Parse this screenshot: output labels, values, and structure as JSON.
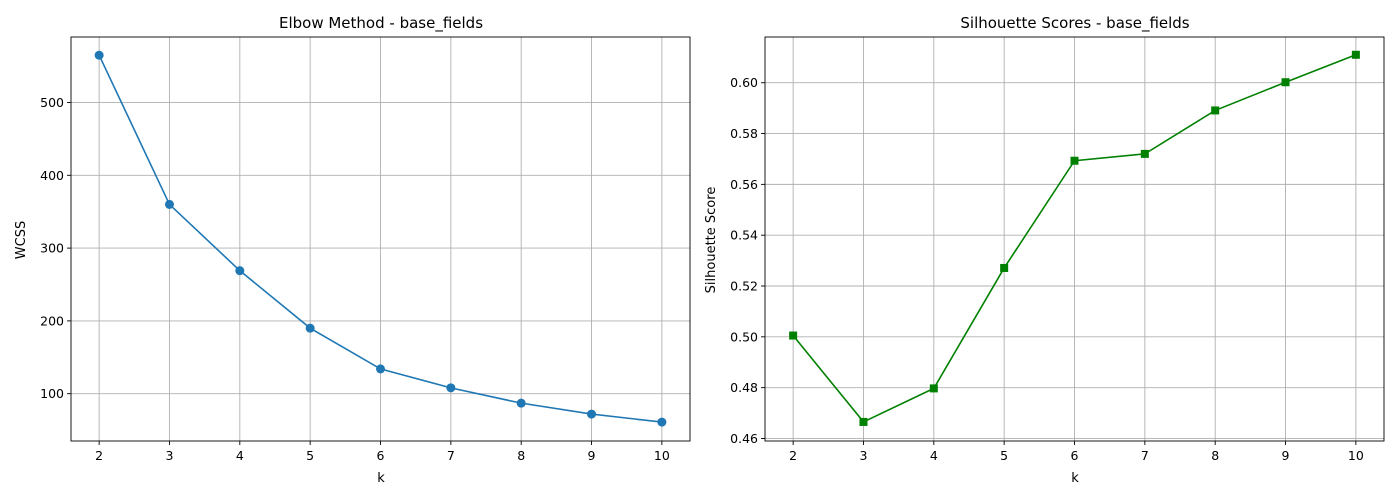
{
  "chart_data": [
    {
      "type": "line",
      "title": "Elbow Method - base_fields",
      "xlabel": "k",
      "ylabel": "WCSS",
      "x": [
        2,
        3,
        4,
        5,
        6,
        7,
        8,
        9,
        10
      ],
      "xlim": [
        1.6,
        10.4
      ],
      "ylim": [
        35,
        590
      ],
      "xticks": [
        2,
        3,
        4,
        5,
        6,
        7,
        8,
        9,
        10
      ],
      "yticks": [
        100,
        200,
        300,
        400,
        500
      ],
      "ytick_format": 0,
      "grid": true,
      "series": [
        {
          "values": [
            565,
            360,
            269,
            190,
            134,
            108,
            87,
            72,
            61
          ],
          "color": "#1f77b4",
          "marker": "circle"
        }
      ]
    },
    {
      "type": "line",
      "title": "Silhouette Scores - base_fields",
      "xlabel": "k",
      "ylabel": "Silhouette Score",
      "x": [
        2,
        3,
        4,
        5,
        6,
        7,
        8,
        9,
        10
      ],
      "xlim": [
        1.6,
        10.4
      ],
      "ylim": [
        0.459,
        0.618
      ],
      "xticks": [
        2,
        3,
        4,
        5,
        6,
        7,
        8,
        9,
        10
      ],
      "yticks": [
        0.46,
        0.48,
        0.5,
        0.52,
        0.54,
        0.56,
        0.58,
        0.6
      ],
      "ytick_format": 2,
      "grid": true,
      "series": [
        {
          "values": [
            0.5005,
            0.4665,
            0.4797,
            0.5271,
            0.5693,
            0.572,
            0.5891,
            0.6002,
            0.611
          ],
          "color": "#008000",
          "marker": "square"
        }
      ]
    }
  ]
}
